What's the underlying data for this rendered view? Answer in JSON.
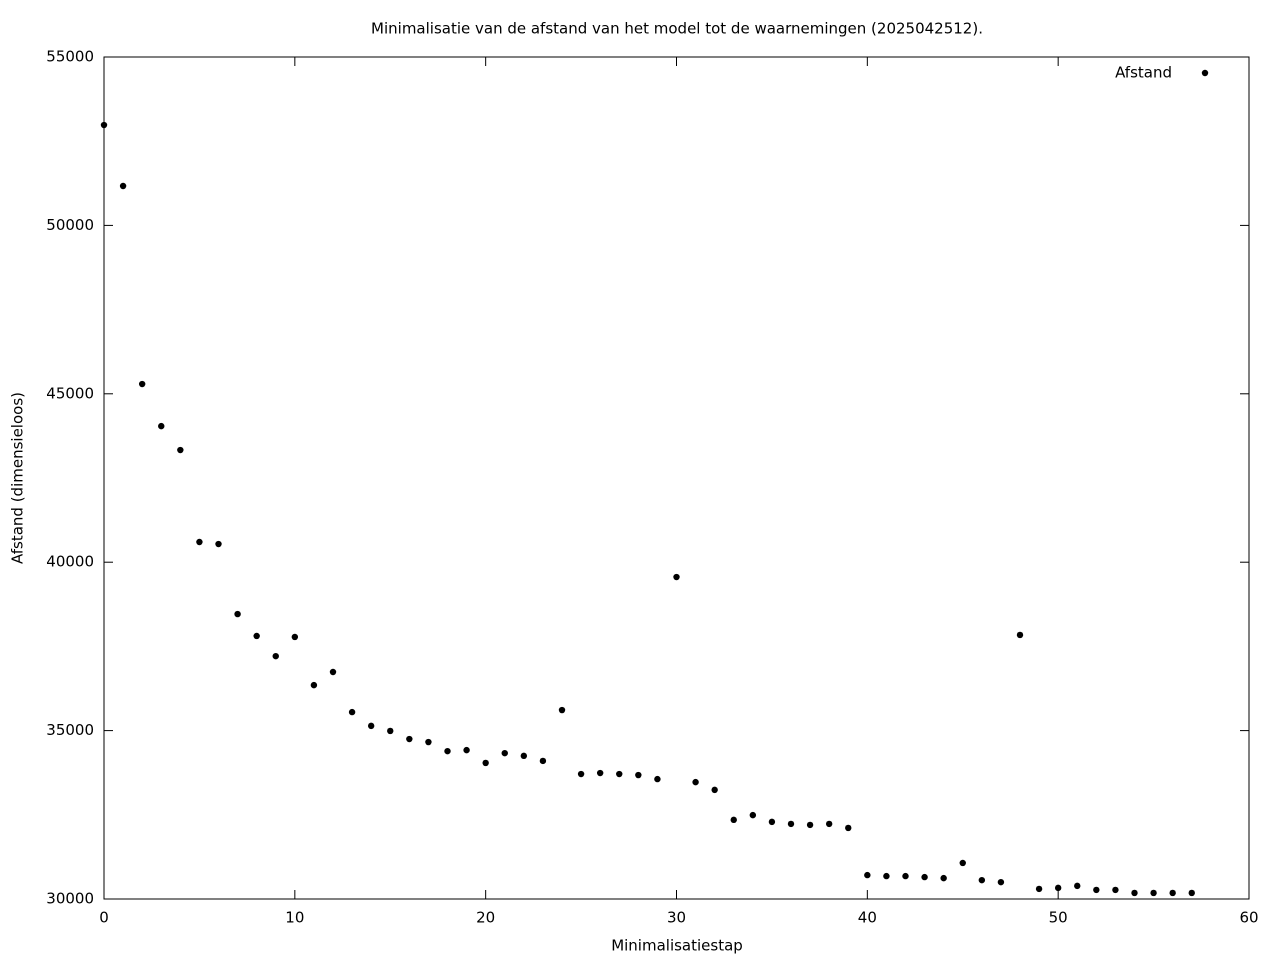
{
  "chart_data": {
    "type": "scatter",
    "title": "Minimalisatie van de afstand van het model tot de waarnemingen (2025042512).",
    "x_label": "Minimalisatiestap",
    "y_label": "Afstand (dimensieloos)",
    "series": [
      {
        "name": "Afstand",
        "color": "#000000",
        "x": [
          0,
          1,
          2,
          3,
          4,
          5,
          6,
          7,
          8,
          9,
          10,
          11,
          12,
          13,
          14,
          15,
          16,
          17,
          18,
          19,
          20,
          21,
          22,
          23,
          24,
          25,
          26,
          27,
          28,
          29,
          30,
          31,
          32,
          33,
          34,
          35,
          36,
          37,
          38,
          39,
          40,
          41,
          42,
          43,
          44,
          45,
          46,
          47,
          48,
          49,
          50,
          51,
          52,
          53,
          54,
          55,
          56,
          57
        ],
        "values": [
          52980,
          51170,
          45290,
          44040,
          43330,
          40600,
          40540,
          38460,
          37810,
          37210,
          37780,
          36350,
          36740,
          35550,
          35140,
          34990,
          34750,
          34660,
          34390,
          34420,
          34040,
          34330,
          34250,
          34100,
          35610,
          33710,
          33740,
          33710,
          33680,
          33560,
          39560,
          33470,
          33240,
          32350,
          32490,
          32290,
          32230,
          32200,
          32230,
          32110,
          30710,
          30680,
          30680,
          30650,
          30620,
          31070,
          30560,
          30500,
          37840,
          30300,
          30330,
          30390,
          30270,
          30270,
          30180,
          30180,
          30180,
          30180
        ]
      }
    ],
    "xlim": [
      0,
      60
    ],
    "xticks": [
      0,
      10,
      20,
      30,
      40,
      50,
      60
    ],
    "ylim": [
      30000,
      55000
    ],
    "yticks": [
      30000,
      35000,
      40000,
      45000,
      50000,
      55000
    ],
    "legend": "top-right"
  }
}
